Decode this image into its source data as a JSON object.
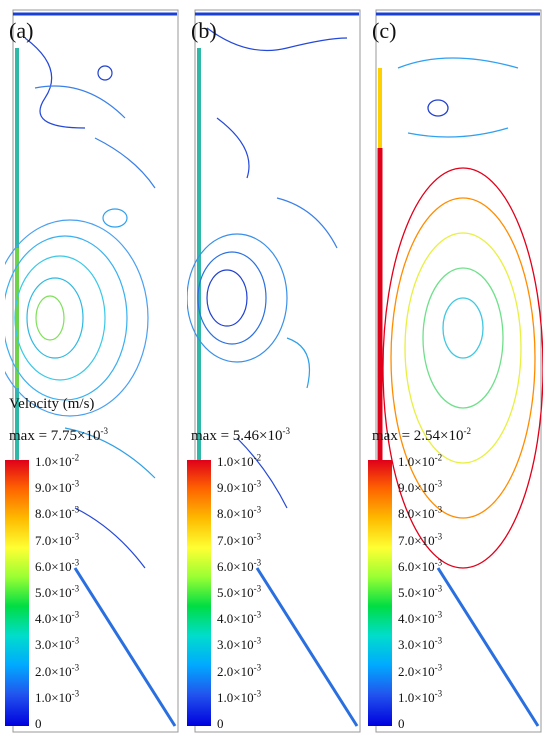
{
  "panels": [
    {
      "label": "(a)",
      "velocity_label": "Velocity (m/s)",
      "max_prefix": "max = ",
      "max_mantissa": "7.75×10",
      "max_exp": "-3"
    },
    {
      "label": "(b)",
      "velocity_label": "",
      "max_prefix": "max = ",
      "max_mantissa": "5.46×10",
      "max_exp": "-3"
    },
    {
      "label": "(c)",
      "velocity_label": "",
      "max_prefix": "max = ",
      "max_mantissa": "2.54×10",
      "max_exp": "-2"
    }
  ],
  "colorbar_ticks": [
    {
      "mantissa": "1.0×10",
      "exp": "-2"
    },
    {
      "mantissa": "9.0×10",
      "exp": "-3"
    },
    {
      "mantissa": "8.0×10",
      "exp": "-3"
    },
    {
      "mantissa": "7.0×10",
      "exp": "-3"
    },
    {
      "mantissa": "6.0×10",
      "exp": "-3"
    },
    {
      "mantissa": "5.0×10",
      "exp": "-3"
    },
    {
      "mantissa": "4.0×10",
      "exp": "-3"
    },
    {
      "mantissa": "3.0×10",
      "exp": "-3"
    },
    {
      "mantissa": "2.0×10",
      "exp": "-3"
    },
    {
      "mantissa": "1.0×10",
      "exp": "-3"
    },
    {
      "mantissa": "0",
      "exp": ""
    }
  ],
  "colors": {
    "low": "#1a3fd6",
    "mid": "#00c8e6",
    "high": "#e0001a"
  }
}
